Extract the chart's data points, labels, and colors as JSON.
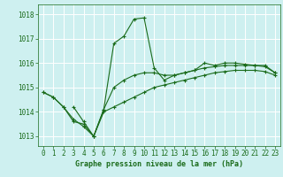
{
  "title": "Graphe pression niveau de la mer (hPa)",
  "background_color": "#cef0f0",
  "line_color": "#1a6b1a",
  "grid_color": "#ffffff",
  "xlim": [
    -0.5,
    23.5
  ],
  "ylim": [
    1012.6,
    1018.4
  ],
  "yticks": [
    1013,
    1014,
    1015,
    1016,
    1017,
    1018
  ],
  "xticks": [
    0,
    1,
    2,
    3,
    4,
    5,
    6,
    7,
    8,
    9,
    10,
    11,
    12,
    13,
    14,
    15,
    16,
    17,
    18,
    19,
    20,
    21,
    22,
    23
  ],
  "line1": [
    [
      0,
      1014.8
    ],
    [
      1,
      1014.6
    ],
    [
      2,
      1014.2
    ],
    [
      3,
      1013.7
    ],
    [
      4,
      1013.4
    ],
    [
      5,
      1013.0
    ],
    [
      6,
      1014.1
    ],
    [
      7,
      1016.8
    ],
    [
      8,
      1017.1
    ],
    [
      9,
      1017.8
    ],
    [
      10,
      1017.85
    ],
    [
      11,
      1015.8
    ],
    [
      12,
      1015.3
    ],
    [
      13,
      1015.5
    ],
    [
      14,
      1015.6
    ],
    [
      15,
      1015.7
    ],
    [
      16,
      1016.0
    ],
    [
      17,
      1015.9
    ],
    [
      18,
      1016.0
    ],
    [
      19,
      1016.0
    ],
    [
      20,
      1015.95
    ],
    [
      21,
      1015.9
    ],
    [
      22,
      1015.85
    ],
    [
      23,
      1015.6
    ]
  ],
  "line2": [
    [
      0,
      1014.8
    ],
    [
      1,
      1014.6
    ],
    [
      2,
      1014.2
    ],
    [
      3,
      1013.6
    ],
    [
      4,
      1013.5
    ],
    [
      5,
      1013.0
    ],
    [
      6,
      1014.1
    ],
    [
      7,
      1015.0
    ],
    [
      8,
      1015.3
    ],
    [
      9,
      1015.5
    ],
    [
      10,
      1015.6
    ],
    [
      11,
      1015.6
    ],
    [
      12,
      1015.5
    ],
    [
      13,
      1015.5
    ],
    [
      14,
      1015.6
    ],
    [
      15,
      1015.7
    ],
    [
      16,
      1015.8
    ],
    [
      17,
      1015.85
    ],
    [
      18,
      1015.9
    ],
    [
      19,
      1015.9
    ],
    [
      20,
      1015.9
    ],
    [
      21,
      1015.9
    ],
    [
      22,
      1015.9
    ],
    [
      23,
      1015.6
    ]
  ],
  "line3": [
    [
      3,
      1014.2
    ],
    [
      4,
      1013.6
    ],
    [
      5,
      1013.0
    ],
    [
      6,
      1014.0
    ],
    [
      7,
      1014.2
    ],
    [
      8,
      1014.4
    ],
    [
      9,
      1014.6
    ],
    [
      10,
      1014.8
    ],
    [
      11,
      1015.0
    ],
    [
      12,
      1015.1
    ],
    [
      13,
      1015.2
    ],
    [
      14,
      1015.3
    ],
    [
      15,
      1015.4
    ],
    [
      16,
      1015.5
    ],
    [
      17,
      1015.6
    ],
    [
      18,
      1015.65
    ],
    [
      19,
      1015.7
    ],
    [
      20,
      1015.7
    ],
    [
      21,
      1015.7
    ],
    [
      22,
      1015.65
    ],
    [
      23,
      1015.5
    ]
  ],
  "tick_fontsize": 5.5,
  "xlabel_fontsize": 6.0,
  "marker_size": 3.0,
  "line_width": 0.8
}
